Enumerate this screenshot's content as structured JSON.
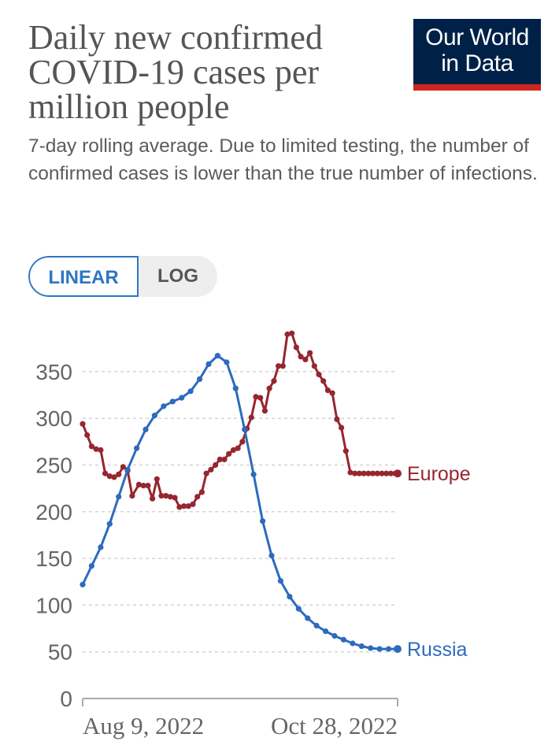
{
  "header": {
    "title": "Daily new confirmed COVID-19 cases per million people",
    "subtitle": "7-day rolling average. Due to limited testing, the number of confirmed cases is lower than the true number of infections."
  },
  "logo": {
    "line1": "Our World",
    "line2": "in Data"
  },
  "scale_toggle": {
    "linear_label": "LINEAR",
    "log_label": "LOG",
    "selected": "LINEAR"
  },
  "colors": {
    "russia": "#2d6bbd",
    "europe": "#96262f",
    "accent": "#2d75c7",
    "logo_bg": "#002147",
    "logo_bar": "#ce261e"
  },
  "chart_data": {
    "type": "line",
    "title": "Daily new confirmed COVID-19 cases per million people",
    "subtitle": "7-day rolling average. Due to limited testing, the number of confirmed cases is lower than the true number of infections.",
    "x_start": "2022-07-02",
    "x_end": "2022-11-19",
    "x_ticks": [
      "Aug 9, 2022",
      "Oct 28, 2022"
    ],
    "ylim": [
      0,
      370
    ],
    "y_ticks": [
      0,
      50,
      100,
      150,
      200,
      250,
      300,
      350
    ],
    "grid": "horizontal dashed",
    "legend": "inline labels at line ends",
    "series": [
      {
        "name": "Europe",
        "x": [
          "2022-07-02",
          "2022-07-04",
          "2022-07-06",
          "2022-07-08",
          "2022-07-10",
          "2022-07-12",
          "2022-07-14",
          "2022-07-16",
          "2022-07-18",
          "2022-07-20",
          "2022-07-22",
          "2022-07-24",
          "2022-07-27",
          "2022-07-29",
          "2022-07-31",
          "2022-08-02",
          "2022-08-04",
          "2022-08-06",
          "2022-08-08",
          "2022-08-10",
          "2022-08-12",
          "2022-08-14",
          "2022-08-16",
          "2022-08-18",
          "2022-08-20",
          "2022-08-22",
          "2022-08-24",
          "2022-08-26",
          "2022-08-28",
          "2022-08-30",
          "2022-09-01",
          "2022-09-03",
          "2022-09-05",
          "2022-09-07",
          "2022-09-09",
          "2022-09-11",
          "2022-09-13",
          "2022-09-15",
          "2022-09-17",
          "2022-09-19",
          "2022-09-21",
          "2022-09-23",
          "2022-09-25",
          "2022-09-27",
          "2022-09-29",
          "2022-10-01",
          "2022-10-03",
          "2022-10-05",
          "2022-10-07",
          "2022-10-09",
          "2022-10-11",
          "2022-10-13",
          "2022-10-15",
          "2022-10-17",
          "2022-10-19",
          "2022-10-21",
          "2022-10-23",
          "2022-10-25",
          "2022-10-27",
          "2022-10-29",
          "2022-10-31",
          "2022-11-02",
          "2022-11-04",
          "2022-11-06",
          "2022-11-08",
          "2022-11-10",
          "2022-11-12",
          "2022-11-14",
          "2022-11-16",
          "2022-11-18",
          "2022-11-19"
        ],
        "values": [
          294,
          282,
          270,
          267,
          266,
          241,
          238,
          237,
          240,
          248,
          244,
          217,
          229,
          228,
          228,
          214,
          235,
          217,
          217,
          216,
          215,
          205,
          206,
          206,
          208,
          216,
          221,
          241,
          245,
          250,
          256,
          256,
          262,
          266,
          268,
          275,
          289,
          301,
          323,
          322,
          308,
          332,
          340,
          356,
          356,
          390,
          391,
          376,
          366,
          363,
          370,
          356,
          347,
          340,
          330,
          327,
          299,
          290,
          265,
          242,
          241,
          241,
          241,
          241,
          241,
          241,
          241,
          241,
          241,
          241,
          241
        ]
      },
      {
        "name": "Russia",
        "x": [
          "2022-07-02",
          "2022-07-06",
          "2022-07-10",
          "2022-07-14",
          "2022-07-18",
          "2022-07-22",
          "2022-07-26",
          "2022-07-30",
          "2022-08-03",
          "2022-08-07",
          "2022-08-11",
          "2022-08-15",
          "2022-08-19",
          "2022-08-23",
          "2022-08-27",
          "2022-08-31",
          "2022-09-04",
          "2022-09-08",
          "2022-09-12",
          "2022-09-16",
          "2022-09-20",
          "2022-09-24",
          "2022-09-28",
          "2022-10-02",
          "2022-10-06",
          "2022-10-10",
          "2022-10-14",
          "2022-10-18",
          "2022-10-22",
          "2022-10-26",
          "2022-10-30",
          "2022-11-03",
          "2022-11-07",
          "2022-11-11",
          "2022-11-15",
          "2022-11-19"
        ],
        "values": [
          122,
          142,
          162,
          187,
          216,
          245,
          268,
          288,
          303,
          313,
          318,
          322,
          329,
          342,
          358,
          367,
          360,
          332,
          288,
          240,
          190,
          153,
          126,
          109,
          96,
          86,
          78,
          72,
          67,
          63,
          59,
          56,
          54,
          53,
          53,
          53
        ]
      }
    ]
  }
}
